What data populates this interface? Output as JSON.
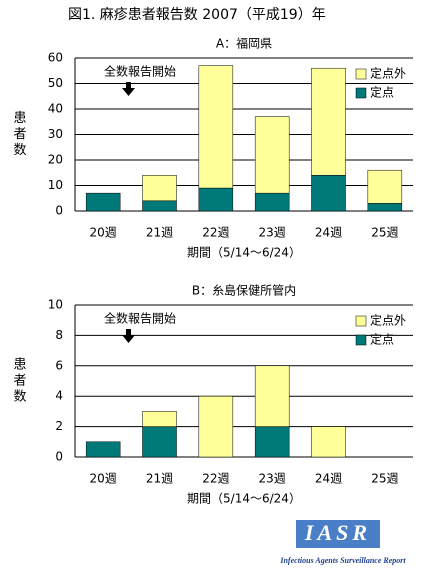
{
  "title": "図1. 麻疹患者報告数 2007（平成19）年",
  "chart_data": [
    {
      "type": "bar",
      "stacked": true,
      "title": "A：福岡県",
      "ylabel": "患者数",
      "xlabel": "期間（5/14～6/24）",
      "annotation": "全数報告開始",
      "categories": [
        "20週",
        "21週",
        "22週",
        "23週",
        "24週",
        "25週"
      ],
      "series": [
        {
          "name": "定点",
          "color": "#007a78",
          "values": [
            7,
            4,
            9,
            7,
            14,
            3
          ]
        },
        {
          "name": "定点外",
          "color": "#ffff99",
          "values": [
            0,
            10,
            48,
            30,
            42,
            13
          ]
        }
      ],
      "ylim": [
        0,
        60
      ],
      "yticks": [
        0,
        10,
        20,
        30,
        40,
        50,
        60
      ],
      "grid": true,
      "legend": "upper right"
    },
    {
      "type": "bar",
      "stacked": true,
      "title": "B：糸島保健所管内",
      "ylabel": "患者数",
      "xlabel": "期間（5/14～6/24）",
      "annotation": "全数報告開始",
      "categories": [
        "20週",
        "21週",
        "22週",
        "23週",
        "24週",
        "25週"
      ],
      "series": [
        {
          "name": "定点",
          "color": "#007a78",
          "values": [
            1,
            2,
            0,
            2,
            0,
            0
          ]
        },
        {
          "name": "定点外",
          "color": "#ffff99",
          "values": [
            0,
            1,
            4,
            4,
            2,
            0
          ]
        }
      ],
      "ylim": [
        0,
        10
      ],
      "yticks": [
        0,
        2,
        4,
        6,
        8,
        10
      ],
      "grid": true,
      "legend": "upper right"
    }
  ],
  "logo": {
    "text": "IASR",
    "subtitle": "Infectious Agents Surveillance Report"
  }
}
